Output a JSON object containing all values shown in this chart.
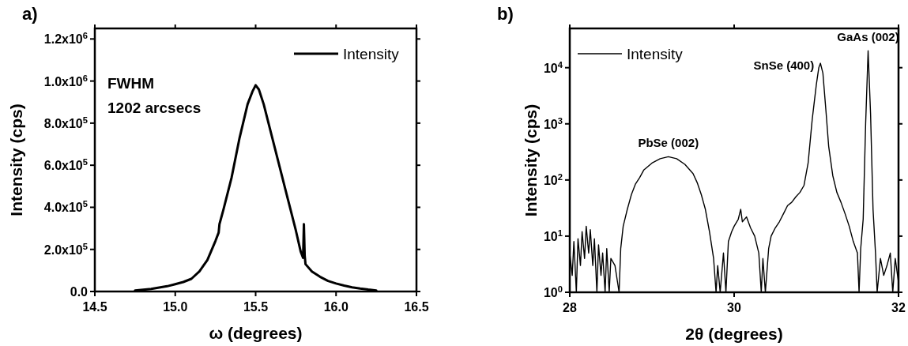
{
  "chart_data": [
    {
      "type": "line",
      "title": "a)",
      "xlabel": "ω (degrees)",
      "ylabel": "Intensity (cps)",
      "xlim": [
        14.5,
        16.5
      ],
      "xticks": [
        {
          "value": 14.5,
          "label": "14.5"
        },
        {
          "value": 15,
          "label": "15.0"
        },
        {
          "value": 15.5,
          "label": "15.5"
        },
        {
          "value": 16,
          "label": "16.0"
        },
        {
          "value": 16.5,
          "label": "16.5"
        }
      ],
      "ylim": [
        0,
        1250000
      ],
      "yticks": [
        {
          "value": 0,
          "label": "0.0"
        },
        {
          "value": 200000,
          "label": "2.0x10$^{5}$"
        },
        {
          "value": 400000,
          "label": "4.0x10$^{5}$"
        },
        {
          "value": 600000,
          "label": "6.0x10$^{5}$"
        },
        {
          "value": 800000,
          "label": "8.0x10$^{5}$"
        },
        {
          "value": 1000000,
          "label": "1.0x10$^{6}$"
        },
        {
          "value": 1200000,
          "label": "1.2x10$^{6}$"
        }
      ],
      "legend": "top right",
      "line_style": "solid",
      "marker": "none",
      "annotations": [
        "FWHM\n1202 arcsecs"
      ],
      "series": [
        {
          "name": "Intensity",
          "color": "#000000",
          "x": [
            14.75,
            14.85,
            14.95,
            15.0,
            15.05,
            15.1,
            15.15,
            15.2,
            15.25,
            15.27,
            15.275,
            15.3,
            15.35,
            15.4,
            15.45,
            15.48,
            15.5,
            15.52,
            15.55,
            15.6,
            15.65,
            15.7,
            15.75,
            15.78,
            15.795,
            15.8,
            15.805,
            15.81,
            15.85,
            15.9,
            15.95,
            16.0,
            16.05,
            16.1,
            16.15,
            16.2,
            16.25
          ],
          "values": [
            5000,
            12000,
            25000,
            35000,
            45000,
            60000,
            95000,
            150000,
            240000,
            280000,
            320000,
            390000,
            540000,
            730000,
            890000,
            950000,
            980000,
            960000,
            890000,
            740000,
            590000,
            440000,
            290000,
            190000,
            160000,
            320000,
            170000,
            130000,
            95000,
            70000,
            50000,
            38000,
            28000,
            20000,
            14000,
            9000,
            5000
          ]
        }
      ]
    },
    {
      "type": "line",
      "title": "b)",
      "xlabel": "2θ (degrees)",
      "ylabel": "Intensity (cps)",
      "xlim": [
        28,
        32
      ],
      "xticks": [
        28,
        30,
        32
      ],
      "ylim": [
        1,
        50000
      ],
      "log": true,
      "yticks": [
        {
          "value": 1,
          "label": "10$^{0}$"
        },
        {
          "value": 10,
          "label": "10$^{1}$"
        },
        {
          "value": 100,
          "label": "10$^{2}$"
        },
        {
          "value": 1000,
          "label": "10$^{3}$"
        },
        {
          "value": 10000,
          "label": "10$^{4}$"
        }
      ],
      "legend": "top left",
      "line_style": "solid",
      "marker": "none",
      "annotations": [
        {
          "text": "PbSe (002)",
          "x": 29.2,
          "y": 260
        },
        {
          "text": "SnSe (400)",
          "x": 31.05,
          "y": 12000
        },
        {
          "text": "GaAs (002)",
          "x": 31.63,
          "y": 20000
        }
      ],
      "series": [
        {
          "name": "Intensity",
          "color": "#000000",
          "x": [
            28.0,
            28.03,
            28.05,
            28.08,
            28.1,
            28.13,
            28.15,
            28.18,
            28.2,
            28.23,
            28.25,
            28.28,
            28.3,
            28.33,
            28.35,
            28.38,
            28.4,
            28.43,
            28.45,
            28.48,
            28.5,
            28.55,
            28.6,
            28.62,
            28.65,
            28.7,
            28.75,
            28.8,
            28.85,
            28.9,
            29.0,
            29.1,
            29.2,
            29.3,
            29.4,
            29.5,
            29.55,
            29.6,
            29.65,
            29.7,
            29.75,
            29.78,
            29.8,
            29.83,
            29.87,
            29.9,
            29.93,
            29.97,
            30.0,
            30.05,
            30.08,
            30.1,
            30.15,
            30.2,
            30.25,
            30.3,
            30.33,
            30.35,
            30.38,
            30.42,
            30.45,
            30.5,
            30.55,
            30.6,
            30.65,
            30.7,
            30.75,
            30.8,
            30.85,
            30.9,
            30.95,
            31.0,
            31.03,
            31.05,
            31.08,
            31.12,
            31.15,
            31.2,
            31.25,
            31.3,
            31.35,
            31.4,
            31.45,
            31.5,
            31.52,
            31.54,
            31.57,
            31.6,
            31.63,
            31.66,
            31.69,
            31.72,
            31.74,
            31.78,
            31.82,
            31.86,
            31.9,
            31.93,
            31.96,
            32.0
          ],
          "values": [
            5,
            2,
            8,
            1,
            9,
            3,
            12,
            4,
            15,
            5,
            13,
            3,
            9,
            1,
            7,
            2,
            5,
            1,
            6,
            1,
            4,
            3,
            1,
            6,
            15,
            30,
            55,
            85,
            110,
            150,
            200,
            240,
            260,
            240,
            190,
            130,
            90,
            55,
            30,
            12,
            4,
            1,
            3,
            1,
            5,
            1,
            8,
            12,
            15,
            20,
            30,
            18,
            22,
            14,
            10,
            5,
            1,
            4,
            1,
            6,
            10,
            14,
            18,
            25,
            35,
            40,
            50,
            60,
            80,
            200,
            1200,
            5000,
            10000,
            12000,
            8000,
            1500,
            400,
            120,
            60,
            40,
            25,
            15,
            8,
            5,
            1,
            6,
            20,
            1000,
            20000,
            1500,
            30,
            5,
            1,
            4,
            2,
            3,
            5,
            1,
            4,
            1.5
          ]
        }
      ]
    }
  ]
}
